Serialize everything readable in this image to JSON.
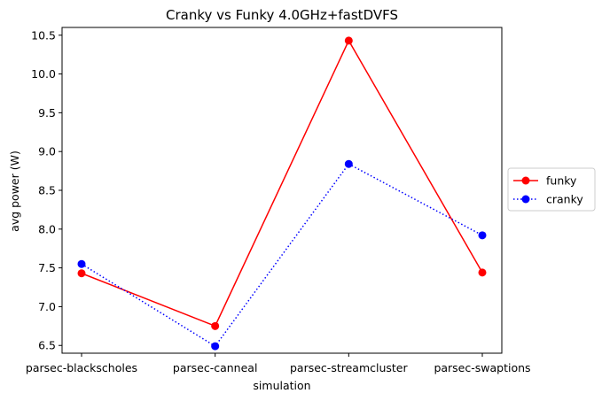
{
  "chart_data": {
    "type": "line",
    "title": "Cranky vs Funky 4.0GHz+fastDVFS",
    "xlabel": "simulation",
    "ylabel": "avg power (W)",
    "categories": [
      "parsec-blackscholes",
      "parsec-canneal",
      "parsec-streamcluster",
      "parsec-swaptions"
    ],
    "ylim": [
      6.4,
      10.6
    ],
    "yticks": [
      6.5,
      7.0,
      7.5,
      8.0,
      8.5,
      9.0,
      9.5,
      10.0,
      10.5
    ],
    "ytick_labels": [
      "6.5",
      "7.0",
      "7.5",
      "8.0",
      "8.5",
      "9.0",
      "9.5",
      "10.0",
      "10.5"
    ],
    "grid": false,
    "legend_position": "right-center",
    "series": [
      {
        "name": "funky",
        "values": [
          7.43,
          6.75,
          10.43,
          7.44
        ],
        "color": "#ff0000",
        "line_style": "solid",
        "marker": "circle"
      },
      {
        "name": "cranky",
        "values": [
          7.55,
          6.49,
          8.84,
          7.92
        ],
        "color": "#0000ff",
        "line_style": "dotted",
        "marker": "circle"
      }
    ]
  }
}
